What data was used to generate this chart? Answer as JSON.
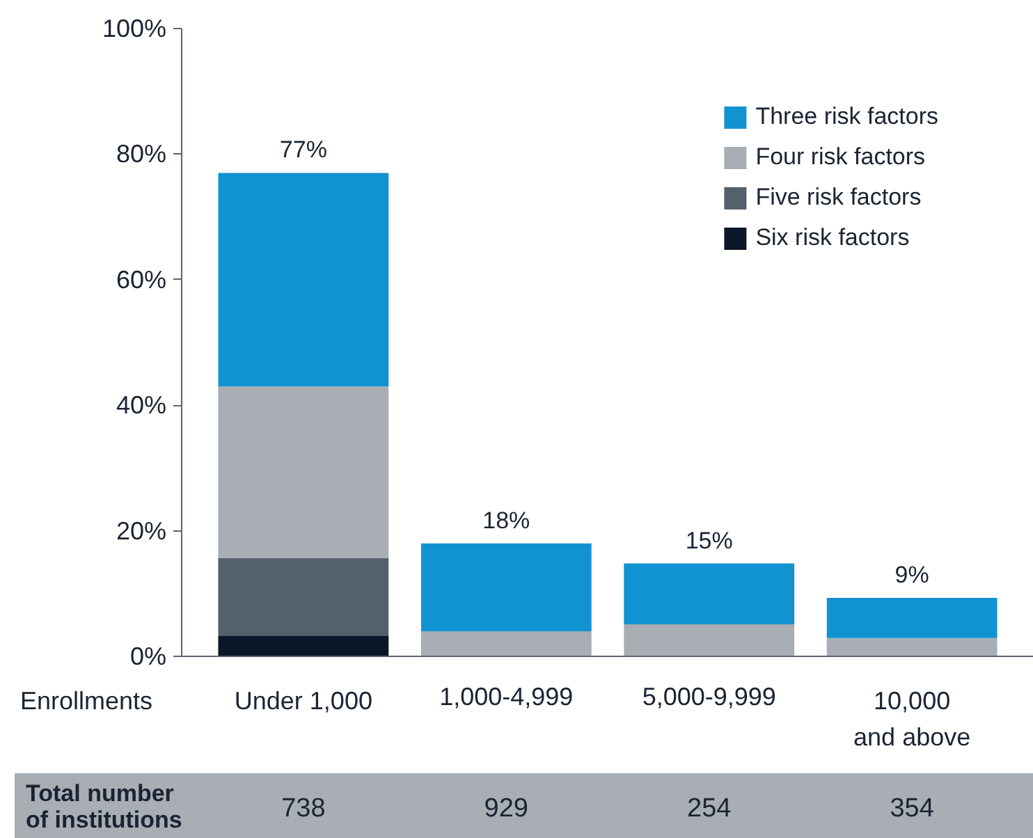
{
  "chart_data": {
    "type": "bar",
    "stacked": true,
    "categories": [
      "Under 1,000",
      "1,000-4,999",
      "5,000-9,999",
      "10,000\nand above"
    ],
    "xlabel": "Enrollments",
    "ylim": [
      0,
      100
    ],
    "yticks": [
      {
        "value": 0,
        "label": "0%"
      },
      {
        "value": 20,
        "label": "20%"
      },
      {
        "value": 40,
        "label": "40%"
      },
      {
        "value": 60,
        "label": "60%"
      },
      {
        "value": 80,
        "label": "80%"
      },
      {
        "value": 100,
        "label": "100%"
      }
    ],
    "grid": false,
    "legend": "top right",
    "totals": [
      "77%",
      "18%",
      "15%",
      "9%"
    ],
    "annotations": [
      "Total number\nof institutions",
      "738",
      "929",
      "254",
      "354"
    ],
    "series": [
      {
        "name": "Six risk factors",
        "color": "#0b1628",
        "values": [
          3.3,
          null,
          null,
          null
        ]
      },
      {
        "name": "Five risk factors",
        "color": "#54606b",
        "values": [
          12.4,
          null,
          null,
          null
        ]
      },
      {
        "name": "Four risk factors",
        "color": "#a8aeb4",
        "values": [
          27.3,
          4.0,
          5.1,
          2.9
        ]
      },
      {
        "name": "Three risk factors",
        "color": "#1193d1",
        "values": [
          34.0,
          14.0,
          9.7,
          6.4
        ]
      }
    ]
  }
}
